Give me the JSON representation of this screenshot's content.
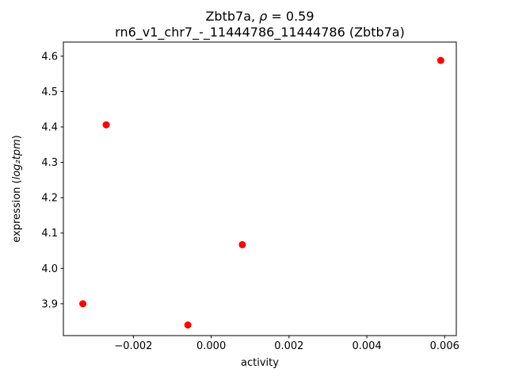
{
  "chart_data": {
    "type": "scatter",
    "title1_prefix": "Zbtb7a, ",
    "title1_rho": "ρ",
    "title1_suffix": " = 0.59",
    "title_line2": "rn6_v1_chr7_-_11444786_11444786 (Zbtb7a)",
    "xlabel": "activity",
    "ylabel_prefix": "expression (",
    "ylabel_math": "log₂tpm",
    "ylabel_suffix": ")",
    "marker_color": "#ff0000",
    "grid": false,
    "legend": "none",
    "xlim": [
      -0.0038,
      0.0063
    ],
    "ylim": [
      3.81,
      4.64
    ],
    "xticks": [
      {
        "value": -0.002,
        "label": "−0.002"
      },
      {
        "value": 0.0,
        "label": "0.000"
      },
      {
        "value": 0.002,
        "label": "0.002"
      },
      {
        "value": 0.004,
        "label": "0.004"
      },
      {
        "value": 0.006,
        "label": "0.006"
      }
    ],
    "yticks": [
      {
        "value": 3.9,
        "label": "3.9"
      },
      {
        "value": 4.0,
        "label": "4.0"
      },
      {
        "value": 4.1,
        "label": "4.1"
      },
      {
        "value": 4.2,
        "label": "4.2"
      },
      {
        "value": 4.3,
        "label": "4.3"
      },
      {
        "value": 4.4,
        "label": "4.4"
      },
      {
        "value": 4.5,
        "label": "4.5"
      },
      {
        "value": 4.6,
        "label": "4.6"
      }
    ],
    "points": [
      {
        "x": -0.0033,
        "y": 3.9
      },
      {
        "x": -0.0027,
        "y": 4.406
      },
      {
        "x": -0.0006,
        "y": 3.84
      },
      {
        "x": 0.0008,
        "y": 4.067
      },
      {
        "x": 0.0059,
        "y": 4.588
      }
    ]
  }
}
